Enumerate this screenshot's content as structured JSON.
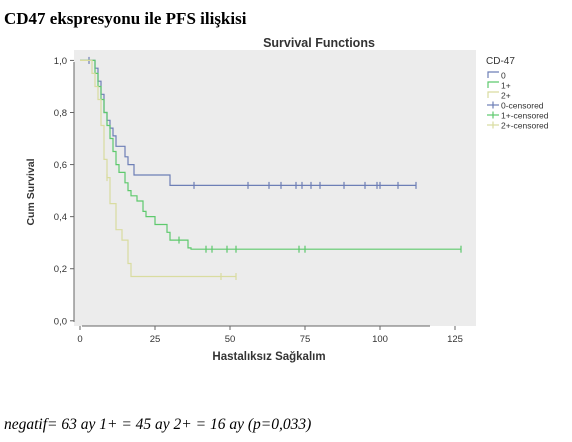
{
  "heading": "CD47 ekspresyonu ile PFS ilişkisi",
  "footnote": "negatif= 63 ay 1+ = 45 ay 2+ = 16 ay (p=0,033)",
  "colors": {
    "plot_bg": "#ececec",
    "page_bg": "#ffffff",
    "axis": "#555555",
    "series_0": "#6d7fb6",
    "series_1": "#5ec96d",
    "series_2": "#d9dca0"
  },
  "chart_data": {
    "type": "line",
    "title": "Survival Functions",
    "xlabel": "Hastalıksız Sağkalım",
    "ylabel": "Cum Survival",
    "xlim": [
      -2,
      132
    ],
    "ylim": [
      -0.02,
      1.04
    ],
    "x_ticks": [
      0,
      25,
      50,
      75,
      100,
      125
    ],
    "y_ticks": [
      0.0,
      0.2,
      0.4,
      0.6,
      0.8,
      1.0
    ],
    "x_tick_labels": [
      "0",
      "25",
      "50",
      "75",
      "100",
      "125"
    ],
    "y_tick_labels": [
      "0,0",
      "0,2",
      "0,4",
      "0,6",
      "0,8",
      "1,0"
    ],
    "grid": false,
    "legend_title": "CD-47",
    "legend_position": "right",
    "legend": [
      {
        "label": "0",
        "kind": "line",
        "color": "#6d7fb6"
      },
      {
        "label": "1+",
        "kind": "line",
        "color": "#5ec96d"
      },
      {
        "label": "2+",
        "kind": "line",
        "color": "#d9dca0"
      },
      {
        "label": "0-censored",
        "kind": "censor",
        "color": "#6d7fb6"
      },
      {
        "label": "1+-censored",
        "kind": "censor",
        "color": "#5ec96d"
      },
      {
        "label": "2+-censored",
        "kind": "censor",
        "color": "#d9dca0"
      }
    ],
    "series": [
      {
        "name": "0",
        "color": "#6d7fb6",
        "steps": [
          [
            0,
            1.0
          ],
          [
            5,
            0.97
          ],
          [
            6,
            0.92
          ],
          [
            7,
            0.87
          ],
          [
            8,
            0.8
          ],
          [
            9,
            0.77
          ],
          [
            10,
            0.74
          ],
          [
            11,
            0.71
          ],
          [
            12,
            0.67
          ],
          [
            15,
            0.63
          ],
          [
            16,
            0.6
          ],
          [
            18,
            0.56
          ],
          [
            30,
            0.52
          ],
          [
            112,
            0.52
          ]
        ],
        "censored": [
          [
            3,
            1.0
          ],
          [
            38,
            0.52
          ],
          [
            56,
            0.52
          ],
          [
            63,
            0.52
          ],
          [
            67,
            0.52
          ],
          [
            72,
            0.52
          ],
          [
            74,
            0.52
          ],
          [
            77,
            0.52
          ],
          [
            80,
            0.52
          ],
          [
            88,
            0.52
          ],
          [
            95,
            0.52
          ],
          [
            99,
            0.52
          ],
          [
            100,
            0.52
          ],
          [
            106,
            0.52
          ],
          [
            112,
            0.52
          ]
        ]
      },
      {
        "name": "1+",
        "color": "#5ec96d",
        "steps": [
          [
            0,
            1.0
          ],
          [
            5,
            0.95
          ],
          [
            6,
            0.9
          ],
          [
            7,
            0.85
          ],
          [
            8,
            0.8
          ],
          [
            9,
            0.75
          ],
          [
            10,
            0.7
          ],
          [
            11,
            0.65
          ],
          [
            12,
            0.6
          ],
          [
            13,
            0.57
          ],
          [
            15,
            0.53
          ],
          [
            16,
            0.5
          ],
          [
            17,
            0.48
          ],
          [
            19,
            0.46
          ],
          [
            21,
            0.42
          ],
          [
            22,
            0.4
          ],
          [
            25,
            0.37
          ],
          [
            29,
            0.34
          ],
          [
            30,
            0.31
          ],
          [
            36,
            0.28
          ],
          [
            37,
            0.275
          ],
          [
            127,
            0.275
          ]
        ],
        "censored": [
          [
            33,
            0.31
          ],
          [
            42,
            0.275
          ],
          [
            44,
            0.275
          ],
          [
            49,
            0.275
          ],
          [
            52,
            0.275
          ],
          [
            73,
            0.275
          ],
          [
            75,
            0.275
          ],
          [
            127,
            0.275
          ]
        ]
      },
      {
        "name": "2+",
        "color": "#d9dca0",
        "steps": [
          [
            0,
            1.0
          ],
          [
            4,
            0.95
          ],
          [
            5,
            0.9
          ],
          [
            6,
            0.85
          ],
          [
            7,
            0.75
          ],
          [
            8,
            0.62
          ],
          [
            9,
            0.55
          ],
          [
            10,
            0.45
          ],
          [
            12,
            0.35
          ],
          [
            14,
            0.31
          ],
          [
            16,
            0.22
          ],
          [
            17,
            0.17
          ],
          [
            52,
            0.17
          ]
        ],
        "censored": [
          [
            9,
            0.55
          ],
          [
            47,
            0.17
          ],
          [
            52,
            0.17
          ]
        ]
      }
    ]
  }
}
